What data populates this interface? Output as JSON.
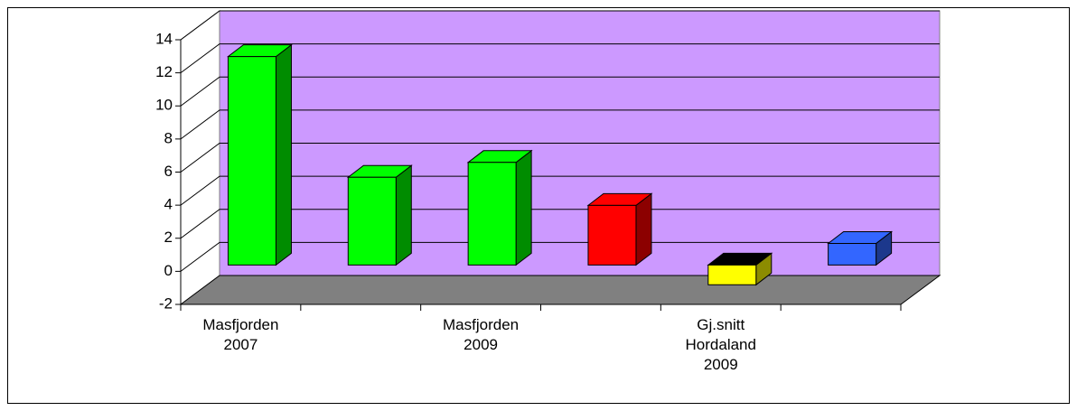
{
  "chart_data": {
    "type": "bar3d",
    "categories": [
      "Masfjorden 2007",
      null,
      "Masfjorden 2009",
      null,
      "Gj.snitt Hordaland 2009",
      null
    ],
    "values": [
      12.6,
      5.3,
      6.2,
      3.6,
      -1.2,
      1.3
    ],
    "colors": [
      "#00ff00",
      "#00ff00",
      "#00ff00",
      "#ff0000",
      "#ffff00",
      "#3366ff"
    ],
    "wall_color": "#cc99ff",
    "floor_color": "#808080",
    "ylim": [
      -2,
      14
    ],
    "yticks": [
      -2,
      0,
      2,
      4,
      6,
      8,
      10,
      12,
      14
    ],
    "grid": true
  }
}
